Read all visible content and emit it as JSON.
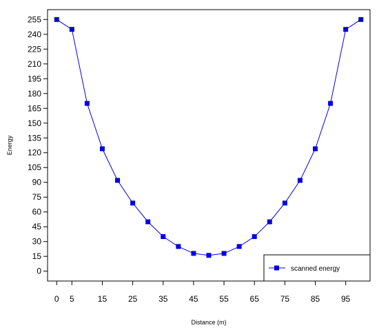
{
  "chart_data": {
    "type": "line",
    "title": "",
    "xlabel": "Distance (m)",
    "ylabel": "Energy",
    "xlim": [
      -3,
      103
    ],
    "ylim": [
      -10,
      265
    ],
    "x_ticks": [
      0,
      5,
      15,
      25,
      35,
      45,
      55,
      65,
      75,
      85,
      95
    ],
    "y_ticks": [
      0,
      15,
      30,
      45,
      60,
      75,
      90,
      105,
      120,
      135,
      150,
      165,
      180,
      195,
      210,
      225,
      240,
      255
    ],
    "grid": false,
    "legend": {
      "position": "bottom-right"
    },
    "series": [
      {
        "name": "scanned energy",
        "color": "#0000dd",
        "marker": "square",
        "x": [
          0,
          5,
          10,
          15,
          20,
          25,
          30,
          35,
          40,
          45,
          50,
          55,
          60,
          65,
          70,
          75,
          80,
          85,
          90,
          95,
          100
        ],
        "y": [
          255,
          245,
          170,
          124,
          92,
          69,
          50,
          35,
          25,
          18,
          16,
          18,
          25,
          35,
          50,
          69,
          92,
          124,
          170,
          245,
          255
        ]
      }
    ]
  }
}
